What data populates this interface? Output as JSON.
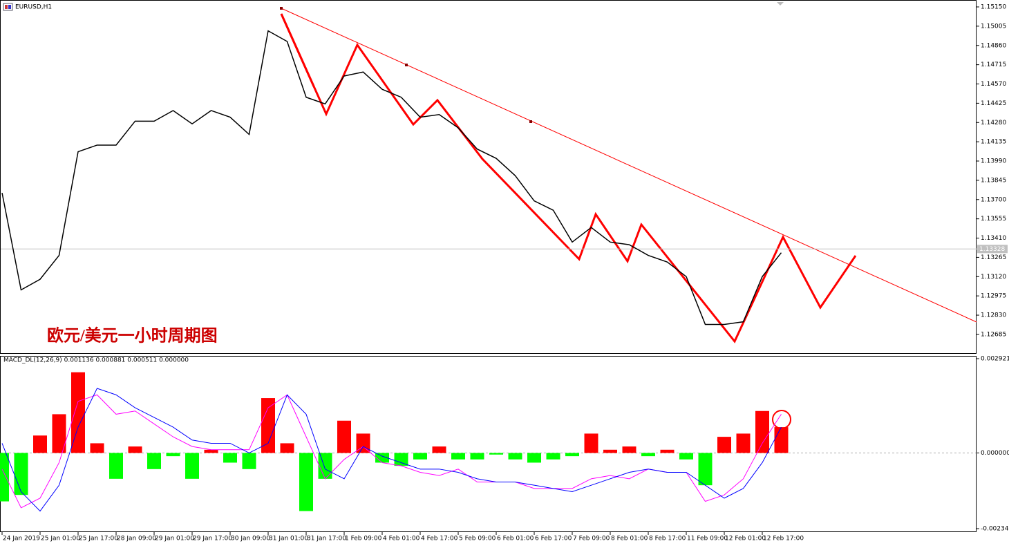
{
  "chart_data": [
    {
      "type": "line",
      "title": "EURUSD,H1",
      "annotation": "欧元/美元一小时周期图",
      "categories": [
        "24 Jan 2019",
        null,
        "25 Jan 01:00",
        null,
        "25 Jan 17:00",
        null,
        "28 Jan 09:00",
        null,
        "29 Jan 01:00",
        null,
        "29 Jan 17:00",
        null,
        "30 Jan 09:00",
        null,
        "31 Jan 01:00",
        null,
        "31 Jan 17:00",
        null,
        "1 Feb 09:00",
        null,
        "4 Feb 01:00",
        null,
        "4 Feb 17:00",
        null,
        "5 Feb 09:00",
        null,
        "6 Feb 01:00",
        null,
        "6 Feb 17:00",
        null,
        "7 Feb 09:00",
        null,
        "8 Feb 01:00",
        null,
        "8 Feb 17:00",
        null,
        "11 Feb 09:00",
        null,
        "12 Feb 01:00",
        null,
        "12 Feb 17:00",
        null
      ],
      "series": [
        {
          "color": "#000000",
          "values": [
            1.1375,
            1.1302,
            1.131,
            1.1328,
            1.1406,
            1.1411,
            1.1411,
            1.1429,
            1.1429,
            1.1437,
            1.1427,
            1.1437,
            1.1432,
            1.1419,
            1.1497,
            1.1489,
            1.1447,
            1.1442,
            1.1463,
            1.1466,
            1.1453,
            1.1447,
            1.1432,
            1.1434,
            1.1424,
            1.1408,
            1.1401,
            1.1388,
            1.1369,
            1.1362,
            1.1338,
            1.1349,
            1.1338,
            1.1336,
            1.1328,
            1.1323,
            1.1312,
            1.1276,
            1.1276,
            1.1278,
            1.1312,
            1.133
          ]
        }
      ],
      "ylim": [
        1.12539,
        1.15202
      ],
      "yticks": [
        {
          "value": 1.1515,
          "label": "1.15150"
        },
        1.15005,
        {
          "value": 1.1486,
          "label": "1.14860"
        },
        1.14715,
        {
          "value": 1.1457,
          "label": "1.14570"
        },
        1.14425,
        {
          "value": 1.1428,
          "label": "1.14280"
        },
        1.14135,
        {
          "value": 1.1399,
          "label": "1.13990"
        },
        1.13845,
        {
          "value": 1.137,
          "label": "1.13700"
        },
        1.13555,
        {
          "value": 1.1341,
          "label": "1.13410"
        },
        1.13265,
        {
          "value": 1.1312,
          "label": "1.13120"
        },
        1.12975,
        {
          "value": 1.1283,
          "label": "1.12830"
        },
        1.12685
      ],
      "last_price": 1.13328
    },
    {
      "type": "macd",
      "title": "MACD_DL(12,26,9) 0.001136 0.000881 0.000511 0.000000",
      "histogram": {
        "up_color": "#ff0000",
        "down_color": "#00ff00",
        "values": [
          -0.0015,
          -0.0013,
          0.00054,
          0.0012,
          0.0025,
          0.0003,
          -0.0008,
          0.0002,
          -0.0005,
          -0.0001,
          -0.0008,
          0.0001,
          -0.0003,
          -0.0005,
          0.0017,
          0.0003,
          -0.0018,
          -0.0008,
          0.001,
          0.0006,
          -0.0003,
          -0.0004,
          -0.0002,
          0.0002,
          -0.0002,
          -0.0002,
          -5e-05,
          -0.0002,
          -0.0003,
          -0.0002,
          -0.0001,
          0.0006,
          0.0001,
          0.0002,
          -0.0001,
          0.0001,
          -0.0002,
          -0.001,
          0.0005,
          0.0006,
          0.0013,
          0.0008
        ]
      },
      "series": [
        {
          "color": "#ff00ff",
          "values": [
            -0.0005,
            -0.0017,
            -0.0014,
            -0.0003,
            0.0016,
            0.0018,
            0.0012,
            0.0013,
            0.0009,
            0.0005,
            0.0002,
            0.0001,
            0.0001,
            0.0001,
            0.0014,
            0.0018,
            0.0005,
            -0.0008,
            -0.0002,
            0.0002,
            -0.0003,
            -0.0004,
            -0.0006,
            -0.0007,
            -0.0005,
            -0.0009,
            -0.0009,
            -0.0009,
            -0.0011,
            -0.0011,
            -0.0011,
            -0.0008,
            -0.0007,
            -0.0008,
            -0.0005,
            -0.0006,
            -0.0006,
            -0.0015,
            -0.0013,
            -0.0008,
            0.0003,
            0.0012
          ]
        },
        {
          "color": "#0000ff",
          "values": [
            0.0003,
            -0.0012,
            -0.0018,
            -0.001,
            0.0008,
            0.002,
            0.0018,
            0.0014,
            0.0011,
            0.0008,
            0.0004,
            0.0003,
            0.0003,
            0,
            0.0003,
            0.0018,
            0.0012,
            -0.0005,
            -0.0008,
            0.0002,
            -0.0001,
            -0.0003,
            -0.0005,
            -0.0005,
            -0.0006,
            -0.0008,
            -0.0009,
            -0.0009,
            -0.001,
            -0.0011,
            -0.0012,
            -0.001,
            -0.0008,
            -0.0006,
            -0.0005,
            -0.0006,
            -0.0006,
            -0.001,
            -0.0014,
            -0.0011,
            -0.0003,
            0.0008
          ]
        }
      ],
      "ylim": [
        -0.002452,
        0.003007
      ],
      "yticks": [
        0.002921,
        {
          "value": 0,
          "label": "0.000000"
        },
        -0.002345
      ]
    }
  ]
}
